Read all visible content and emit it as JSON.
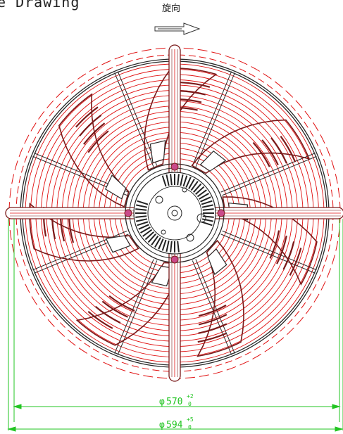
{
  "header": {
    "title_fragment": "e Drawing"
  },
  "rotation": {
    "label": "旋向",
    "arrow_icon": "hollow-right-arrow-icon"
  },
  "dimensions": {
    "inner": {
      "symbol": "φ",
      "value": "570",
      "tol_upper": "+2",
      "tol_lower": "0"
    },
    "outer": {
      "symbol": "φ",
      "value": "594",
      "tol_upper": "+5",
      "tol_lower": "0"
    }
  },
  "colors": {
    "outline": "#7a1a1a",
    "guard": "#2a2a2a",
    "guard_rings": "#e01010",
    "dimension": "#22c522",
    "hub": "#222222"
  },
  "drawing": {
    "blade_count": 7,
    "guard_ring_count": 20,
    "guard_spoke_count": 8
  }
}
